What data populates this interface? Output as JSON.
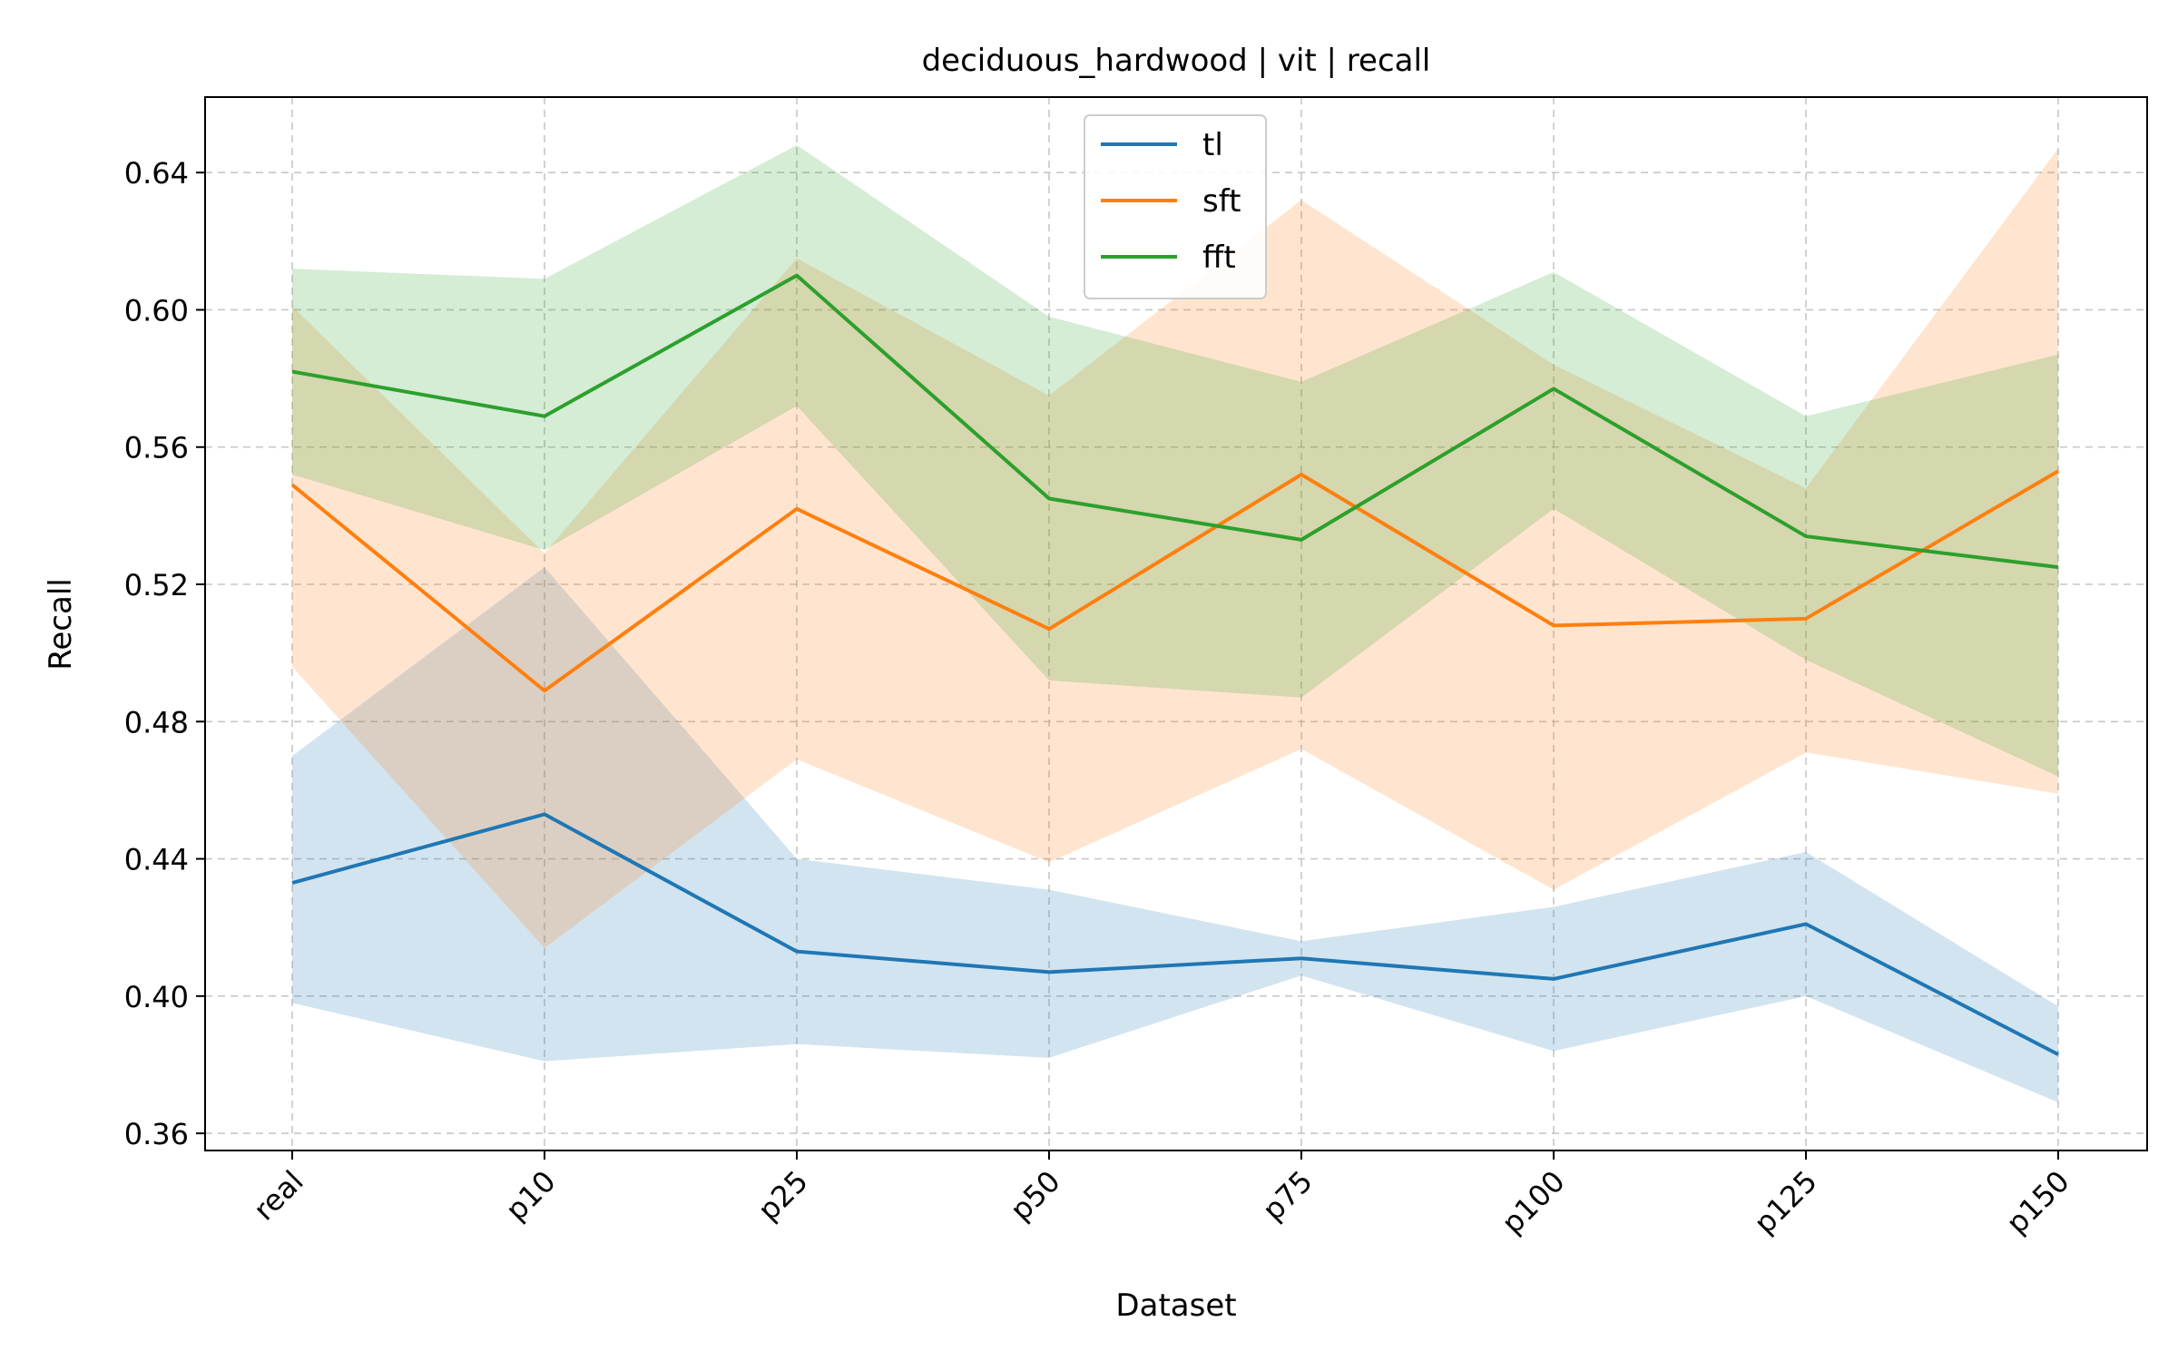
{
  "chart_data": {
    "type": "line",
    "title": "deciduous_hardwood | vit | recall",
    "xlabel": "Dataset",
    "ylabel": "Recall",
    "categories": [
      "real",
      "p10",
      "p25",
      "p50",
      "p75",
      "p100",
      "p125",
      "p150"
    ],
    "ylim": [
      0.355,
      0.662
    ],
    "yticks": [
      0.36,
      0.4,
      0.44,
      0.48,
      0.52,
      0.56,
      0.6,
      0.64
    ],
    "ytick_labels": [
      "0.36",
      "0.40",
      "0.44",
      "0.48",
      "0.52",
      "0.56",
      "0.60",
      "0.64"
    ],
    "grid": true,
    "legend_position": "top-center",
    "series": [
      {
        "name": "tl",
        "color": "#1f77b4",
        "values": [
          0.433,
          0.453,
          0.413,
          0.407,
          0.411,
          0.405,
          0.421,
          0.383
        ],
        "lower": [
          0.398,
          0.381,
          0.386,
          0.382,
          0.406,
          0.384,
          0.4,
          0.369
        ],
        "upper": [
          0.47,
          0.525,
          0.44,
          0.431,
          0.416,
          0.426,
          0.442,
          0.397
        ]
      },
      {
        "name": "sft",
        "color": "#ff7f0e",
        "values": [
          0.549,
          0.489,
          0.542,
          0.507,
          0.552,
          0.508,
          0.51,
          0.553
        ],
        "lower": [
          0.496,
          0.414,
          0.469,
          0.439,
          0.472,
          0.431,
          0.471,
          0.459
        ],
        "upper": [
          0.601,
          0.529,
          0.615,
          0.575,
          0.632,
          0.584,
          0.548,
          0.647
        ]
      },
      {
        "name": "fft",
        "color": "#2ca02c",
        "values": [
          0.582,
          0.569,
          0.61,
          0.545,
          0.533,
          0.577,
          0.534,
          0.525
        ],
        "lower": [
          0.552,
          0.53,
          0.572,
          0.492,
          0.487,
          0.542,
          0.498,
          0.464
        ],
        "upper": [
          0.612,
          0.609,
          0.648,
          0.598,
          0.579,
          0.611,
          0.569,
          0.587
        ]
      }
    ]
  }
}
